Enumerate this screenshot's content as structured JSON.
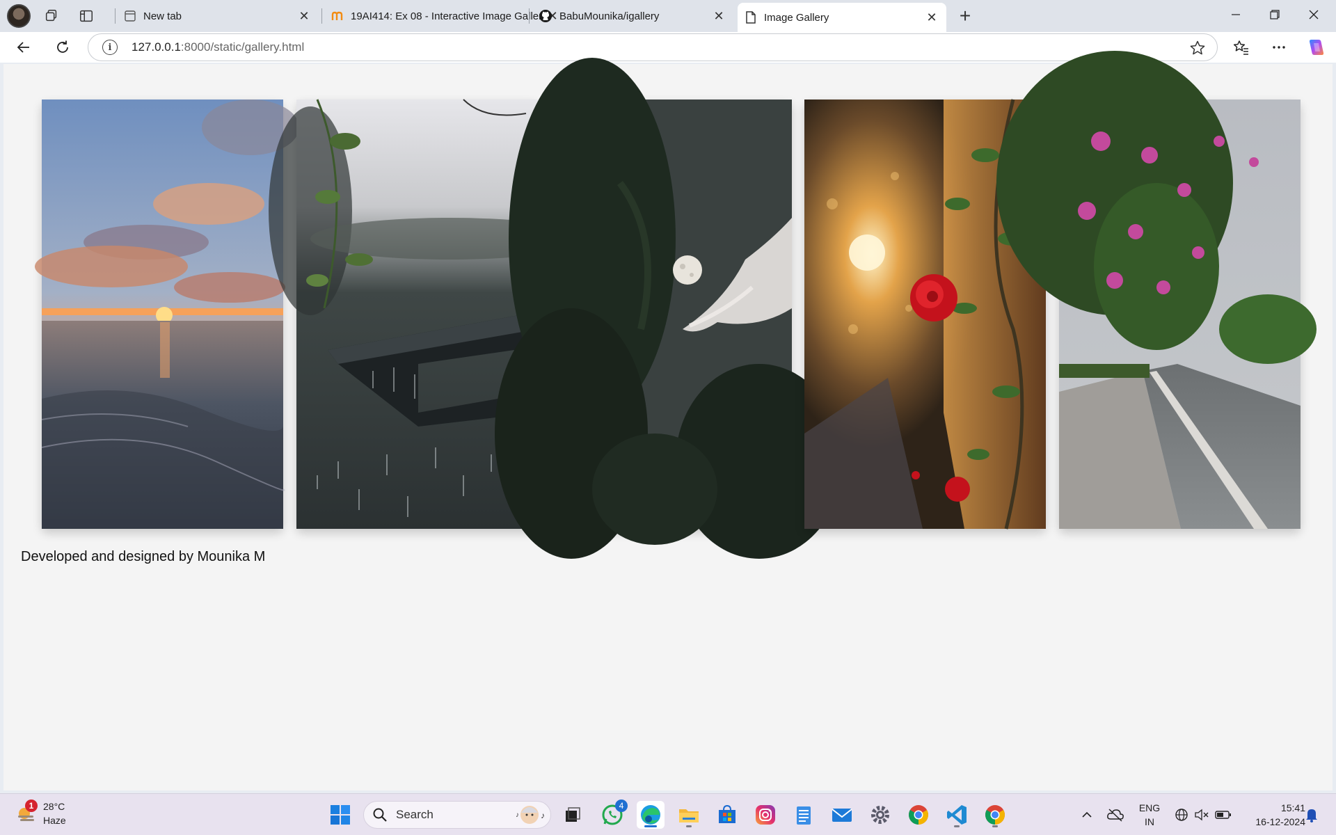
{
  "browser": {
    "tabs": [
      {
        "title": "New tab",
        "icon": "newtab-icon"
      },
      {
        "title": "19AI414: Ex 08 - Interactive Image Gallery",
        "icon": "moodle-icon"
      },
      {
        "title": "BabuMounika/igallery",
        "icon": "github-icon"
      },
      {
        "title": "Image Gallery",
        "icon": "page-icon",
        "active": true
      }
    ],
    "address": {
      "host": "127.0.0.1",
      "rest": ":8000/static/gallery.html"
    }
  },
  "page": {
    "images": [
      {
        "name": "sunset-beach-image"
      },
      {
        "name": "rain-roof-image"
      },
      {
        "name": "moon-trees-image"
      },
      {
        "name": "rose-wall-image"
      },
      {
        "name": "bougainvillea-road-image"
      }
    ],
    "footer": "Developed and designed by Mounika M"
  },
  "taskbar": {
    "weather": {
      "temp": "28°C",
      "condition": "Haze",
      "badge": "1"
    },
    "search_label": "Search",
    "whatsapp_badge": "4",
    "lang_line1": "ENG",
    "lang_line2": "IN",
    "time": "15:41",
    "date": "16-12-2024"
  },
  "colors": {
    "accent": "#1f6fd1",
    "page_bg": "#f4f4f4",
    "taskbar_bg": "#e8e2ef"
  }
}
